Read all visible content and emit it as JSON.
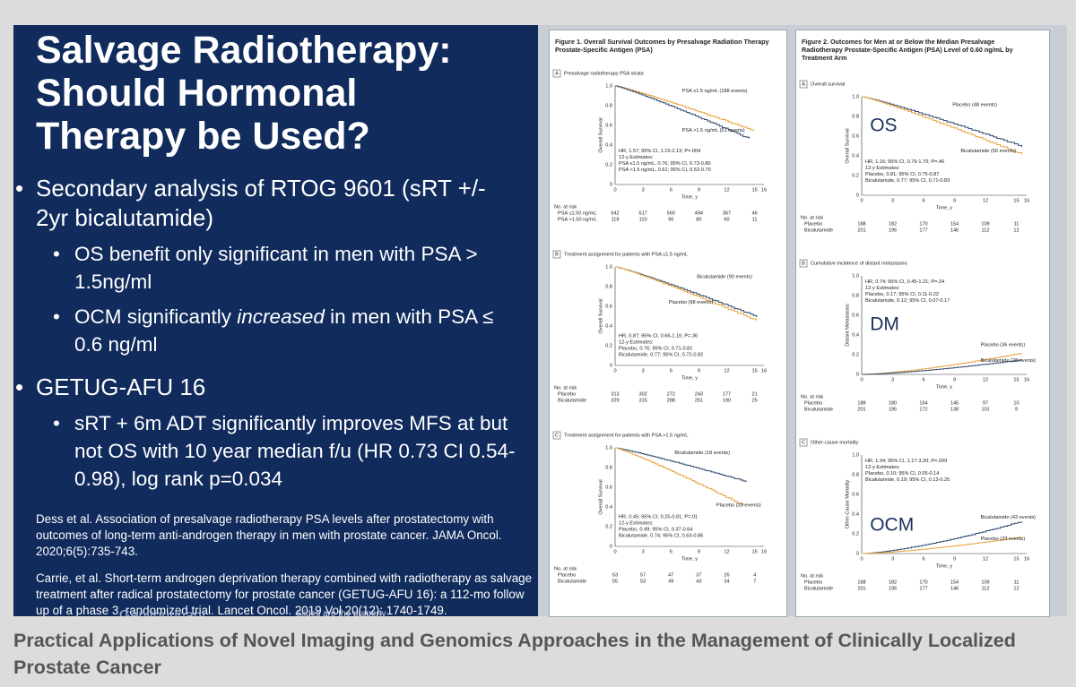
{
  "slide": {
    "title_lines": [
      "Salvage Radiotherapy:",
      "Should Hormonal",
      "Therapy be Used?"
    ],
    "bullets": [
      {
        "text": "Secondary analysis of RTOG 9601 (sRT +/- 2yr bicalutamide)",
        "sub": [
          {
            "parts": [
              "OS benefit only significant in men with PSA > 1.5ng/ml"
            ]
          },
          {
            "parts": [
              "OCM significantly ",
              "increased",
              " in men with PSA ≤ 0.6 ng/ml"
            ]
          }
        ]
      },
      {
        "text": "GETUG-AFU 16",
        "sub": [
          {
            "parts": [
              "sRT + 6m ADT  significantly improves MFS at but not OS with 10 year median f/u (HR 0.73 CI 0.54-0.98), log rank p=0.034"
            ]
          }
        ]
      }
    ],
    "references": [
      "Dess et al.  Association of presalvage radiotherapy PSA levels after prostatectomy with outcomes of long-term anti-androgen therapy in men with prostate cancer.  JAMA Oncol. 2020;6(5):735-743.",
      "Carrie, et al.  Short-term androgen deprivation therapy combined with radiotherapy as salvage treatment after radical prostatectomy for prostate cancer (GETUG-AFU 16): a 112-mo follow up of a phase 3, randomized trial.  Lancet Oncol.  2019 Vol 20(12): 1740-1749."
    ],
    "footer": [
      "Genitourinary",
      "Slides are the property"
    ]
  },
  "figures": [
    {
      "title": "Figure 1. Overall Survival Outcomes by Presalvage Radiation Therapy Prostate-Specific Antigen (PSA)",
      "panels": [
        {
          "label": "A",
          "title": "Presalvage radiotherapy PSA strata",
          "y_axis_label": "Overall Survival",
          "y_ticks": [
            "1.0",
            "0.8",
            "0.6",
            "0.4",
            "0.2",
            "0"
          ],
          "x_ticks": [
            "0",
            "3",
            "6",
            "9",
            "12",
            "15",
            "16"
          ],
          "x_axis_label": "Time, y",
          "curve_labels": [
            "PSA ≤1.5 ng/mL (188 events)",
            "PSA >1.5 ng/mL (51 events)"
          ],
          "stats": [
            "HR, 1.57; 95% CI, 1.15-2.13; P=.004",
            "12-y Estimates:",
            "PSA ≤1.5 ng/mL, 0.76; 95% CI, 0.73-0.80",
            "PSA >1.5 ng/mL, 0.61; 95% CI, 0.52-0.70"
          ],
          "at_risk": {
            "header": "No. at risk",
            "rows": [
              {
                "name": "PSA ≤1.50 ng/mL",
                "values": [
                  642,
                  617,
                  560,
                  494,
                  367,
                  46
                ]
              },
              {
                "name": "PSA >1.50 ng/mL",
                "values": [
                  118,
                  110,
                  96,
                  80,
                  60,
                  11
                ]
              }
            ]
          }
        },
        {
          "label": "B",
          "title": "Treatment assignment for patients with PSA ≤1.5 ng/mL",
          "y_axis_label": "Overall Survival",
          "y_ticks": [
            "1.0",
            "0.8",
            "0.6",
            "0.4",
            "0.2",
            "0"
          ],
          "x_ticks": [
            "0",
            "3",
            "6",
            "9",
            "12",
            "15",
            "16"
          ],
          "x_axis_label": "Time, y",
          "curve_labels": [
            "Bicalutamide (90 events)",
            "Placebo (98 events)"
          ],
          "stats": [
            "HR, 0.87; 95% CI, 0.66-1.16; P=.36",
            "12-y Estimates:",
            "Placebo, 0.76; 95% CI, 0.71-0.81",
            "Bicalutamide, 0.77; 95% CI, 0.72-0.82"
          ],
          "at_risk": {
            "header": "No. at risk",
            "rows": [
              {
                "name": "Placebo",
                "values": [
                  313,
                  302,
                  272,
                  243,
                  177,
                  21
                ]
              },
              {
                "name": "Bicalutamide",
                "values": [
                  329,
                  315,
                  288,
                  251,
                  190,
                  25
                ]
              }
            ]
          }
        },
        {
          "label": "C",
          "title": "Treatment assignment for patients with PSA >1.5 ng/mL",
          "y_axis_label": "Overall Survival",
          "y_ticks": [
            "1.0",
            "0.8",
            "0.6",
            "0.4",
            "0.2",
            "0"
          ],
          "x_ticks": [
            "0",
            "3",
            "6",
            "9",
            "12",
            "15",
            "16"
          ],
          "x_axis_label": "Time, y",
          "curve_labels": [
            "Bicalutamide (18 events)",
            "Placebo (33 events)"
          ],
          "stats": [
            "HR, 0.45; 95% CI, 0.25-0.81; P=.01",
            "12-y Estimates:",
            "Placebo, 0.49; 95% CI, 0.37-0.64",
            "Bicalutamide, 0.74; 95% CI, 0.63-0.86"
          ],
          "at_risk": {
            "header": "No. at risk",
            "rows": [
              {
                "name": "Placebo",
                "values": [
                  63,
                  57,
                  47,
                  37,
                  26,
                  4
                ]
              },
              {
                "name": "Bicalutamide",
                "values": [
                  55,
                  53,
                  49,
                  43,
                  34,
                  7
                ]
              }
            ]
          }
        }
      ]
    },
    {
      "title": "Figure 2. Outcomes for Men at or Below the Median Presalvage Radiotherapy Prostate-Specific Antigen (PSA) Level of 0.60 ng/mL by Treatment Arm",
      "panels": [
        {
          "label": "A",
          "title": "Overall survival",
          "y_axis_label": "Overall Survival",
          "big_label": "OS",
          "y_ticks": [
            "1.0",
            "0.8",
            "0.6",
            "0.4",
            "0.2",
            "0"
          ],
          "x_ticks": [
            "0",
            "3",
            "6",
            "9",
            "12",
            "15",
            "16"
          ],
          "x_axis_label": "Time, y",
          "curve_labels": [
            "Placebo (48 events)",
            "Bicalutamide (56 events)"
          ],
          "stats": [
            "HR, 1.16; 95% CI, 0.79-1.70; P=.46",
            "12-y Estimates:",
            "Placebo, 0.81; 95% CI, 0.75-0.87",
            "Bicalutamide, 0.77; 95% CI, 0.71-0.83"
          ],
          "at_risk": {
            "header": "No. at risk",
            "rows": [
              {
                "name": "Placebo",
                "values": [
                  188,
                  182,
                  170,
                  154,
                  109,
                  11
                ]
              },
              {
                "name": "Bicalutamide",
                "values": [
                  201,
                  195,
                  177,
                  146,
                  112,
                  12
                ]
              }
            ]
          }
        },
        {
          "label": "B",
          "title": "Cumulative incidence of distant metastases",
          "y_axis_label": "Distant Metastases",
          "big_label": "DM",
          "y_ticks": [
            "1.0",
            "0.8",
            "0.6",
            "0.4",
            "0.2",
            "0"
          ],
          "x_ticks": [
            "0",
            "3",
            "6",
            "9",
            "12",
            "15",
            "16"
          ],
          "x_axis_label": "Time, y",
          "curve_labels": [
            "Placebo (36 events)",
            "Bicalutamide (28 events)"
          ],
          "stats": [
            "HR, 0.74; 95% CI, 0.45-1.21; P=.24",
            "12-y Estimates:",
            "Placebo, 0.17; 95% CI, 0.11-0.22",
            "Bicalutamide, 0.12; 95% CI, 0.07-0.17"
          ],
          "at_risk": {
            "header": "No. at risk",
            "rows": [
              {
                "name": "Placebo",
                "values": [
                  188,
                  180,
                  164,
                  145,
                  97,
                  10
                ]
              },
              {
                "name": "Bicalutamide",
                "values": [
                  201,
                  195,
                  172,
                  138,
                  101,
                  9
                ]
              }
            ]
          }
        },
        {
          "label": "C",
          "title": "Other-cause mortality",
          "y_axis_label": "Other-Cause Mortality",
          "big_label": "OCM",
          "y_ticks": [
            "1.0",
            "0.8",
            "0.6",
            "0.4",
            "0.2",
            "0"
          ],
          "x_ticks": [
            "0",
            "3",
            "6",
            "9",
            "12",
            "15",
            "16"
          ],
          "x_axis_label": "Time, y",
          "curve_labels": [
            "Bicalutamide (43 events)",
            "Placebo (23 events)"
          ],
          "stats": [
            "HR, 1.94; 95% CI, 1.17-3.20; P=.009",
            "12-y Estimates:",
            "Placebo, 0.10; 95% CI, 0.05-0.14",
            "Bicalutamide, 0.19; 95% CI, 0.13-0.25"
          ],
          "at_risk": {
            "header": "No. at risk",
            "rows": [
              {
                "name": "Placebo",
                "values": [
                  188,
                  182,
                  170,
                  154,
                  109,
                  11
                ]
              },
              {
                "name": "Bicalutamide",
                "values": [
                  201,
                  195,
                  177,
                  146,
                  112,
                  12
                ]
              }
            ]
          }
        }
      ]
    }
  ],
  "caption": "Practical Applications of Novel Imaging and Genomics Approaches in the Management of Clinically Localized Prostate Cancer"
}
